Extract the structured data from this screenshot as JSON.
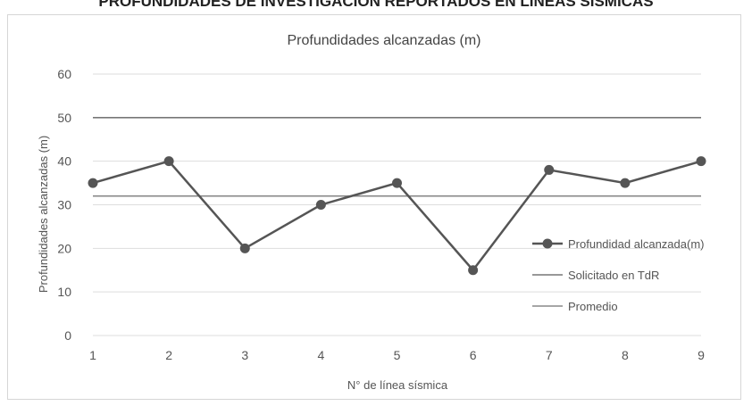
{
  "page_heading": "PROFUNDIDADES DE INVESTIGACION REPORTADOS EN LINEAS SISMICAS",
  "chart_data": {
    "type": "line",
    "title": "Profundidades alcanzadas (m)",
    "xlabel": "N° de línea sísmica",
    "ylabel": "Profundidades alcanzadas (m)",
    "categories": [
      "1",
      "2",
      "3",
      "4",
      "5",
      "6",
      "7",
      "8",
      "9"
    ],
    "ylim": [
      0,
      60
    ],
    "yticks": [
      "0",
      "10",
      "20",
      "30",
      "40",
      "50",
      "60"
    ],
    "grid": true,
    "legend_position": "right",
    "series": [
      {
        "name": "Profundidad alcanzada(m)",
        "values": [
          35,
          40,
          20,
          30,
          35,
          15,
          38,
          35,
          40
        ],
        "color": "#555555",
        "markers": true
      },
      {
        "name": "Solicitado en TdR",
        "values": [
          50,
          50,
          50,
          50,
          50,
          50,
          50,
          50,
          50
        ],
        "color": "#777777",
        "markers": false
      },
      {
        "name": "Promedio",
        "values": [
          32,
          32,
          32,
          32,
          32,
          32,
          32,
          32,
          32
        ],
        "color": "#888888",
        "markers": false
      }
    ]
  }
}
